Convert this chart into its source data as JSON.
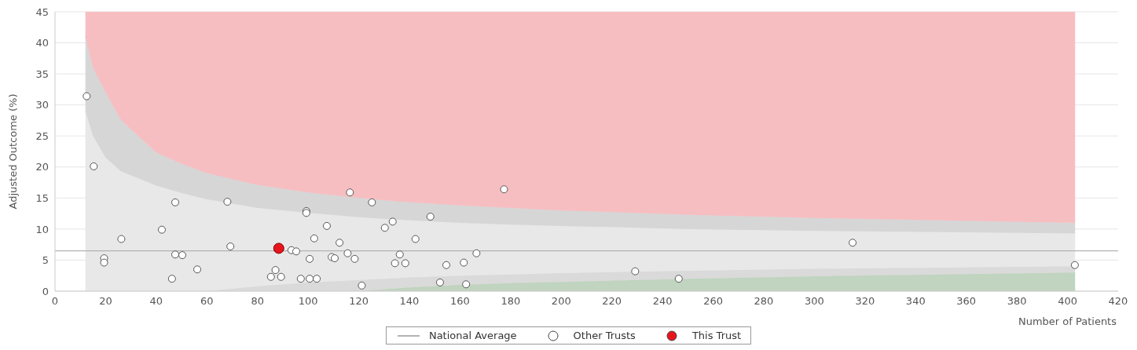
{
  "chart_data": {
    "type": "scatter",
    "xlabel": "Number of Patients",
    "ylabel": "Adjusted Outcome (%)",
    "xlim": [
      0,
      420
    ],
    "xticks": [
      0,
      20,
      40,
      60,
      80,
      100,
      120,
      140,
      160,
      180,
      200,
      220,
      240,
      260,
      280,
      300,
      320,
      340,
      360,
      380,
      400,
      420
    ],
    "ylim": [
      0,
      45
    ],
    "yticks": [
      0,
      5,
      10,
      15,
      20,
      25,
      30,
      35,
      40,
      45
    ],
    "grid": "y",
    "legend": "bottom",
    "stacked": true,
    "series": [
      {
        "type": "area",
        "color": "#c0d4bf",
        "x": [
          12,
          15,
          20,
          26,
          40,
          50,
          60,
          80,
          100,
          120,
          140,
          160,
          180,
          200,
          250,
          300,
          350,
          403
        ],
        "values": [
          0,
          0,
          0,
          0,
          0,
          0,
          0,
          0,
          0,
          0,
          0.6,
          1,
          1.3,
          1.5,
          2,
          2.4,
          2.7,
          3
        ]
      },
      {
        "type": "area",
        "color": "#dadada",
        "x": [
          12,
          15,
          20,
          26,
          40,
          50,
          60,
          80,
          100,
          120,
          140,
          160,
          180,
          200,
          250,
          300,
          350,
          403
        ],
        "values": [
          0,
          0,
          0,
          0,
          0,
          0,
          0,
          0.8,
          1.4,
          1.8,
          1.6,
          1.5,
          1.4,
          1.4,
          1.3,
          1.2,
          1.1,
          1
        ]
      },
      {
        "type": "area",
        "color": "#e8e8e8",
        "x": [
          12,
          15,
          20,
          26,
          40,
          50,
          60,
          80,
          100,
          120,
          140,
          160,
          180,
          200,
          250,
          300,
          350,
          403
        ],
        "values": [
          29,
          25,
          21.5,
          19.3,
          17,
          15.8,
          14.8,
          12.6,
          11.2,
          10.1,
          9.2,
          8.5,
          8,
          7.6,
          6.7,
          6.1,
          5.7,
          5.3
        ]
      },
      {
        "type": "area",
        "color": "#d6d6d6",
        "x": [
          12,
          15,
          20,
          26,
          40,
          50,
          60,
          80,
          100,
          120,
          140,
          160,
          180,
          200,
          250,
          300,
          350,
          403
        ],
        "values": [
          12,
          11,
          10.5,
          8.3,
          5.3,
          4.7,
          4.2,
          3.7,
          3.3,
          3.1,
          2.9,
          2.8,
          2.7,
          2.5,
          2.3,
          2.1,
          1.9,
          1.7
        ]
      },
      {
        "type": "area",
        "color": "#f7bec2",
        "x": [
          12,
          15,
          20,
          26,
          40,
          50,
          60,
          80,
          100,
          120,
          140,
          160,
          180,
          200,
          250,
          300,
          350,
          403
        ],
        "values": [
          4,
          9,
          13,
          17.4,
          22.7,
          24.5,
          26,
          27.9,
          29.1,
          30,
          30.7,
          31.2,
          31.6,
          32,
          32.7,
          33.2,
          33.6,
          34
        ]
      },
      {
        "type": "line",
        "name": "National Average",
        "color": "#b3b3b3",
        "marker": "none",
        "x": [
          0,
          420
        ],
        "values": [
          6.5,
          6.5
        ]
      },
      {
        "name": "Other Trusts",
        "color": "#ffffff",
        "marker": "circle",
        "x": [
          12.5,
          15.3,
          19.4,
          19.4,
          26.2,
          42.2,
          47.5,
          46.2,
          47.5,
          50.3,
          56.2,
          68.1,
          69.3,
          85.3,
          87.1,
          89.3,
          93.4,
          95.3,
          97.1,
          99.3,
          99.3,
          100.6,
          100.6,
          102.4,
          103.4,
          107.4,
          109.3,
          110.5,
          112.4,
          115.6,
          116.5,
          118.4,
          121.2,
          125.2,
          130.3,
          133.4,
          134.3,
          136.2,
          138.4,
          142.4,
          148.3,
          152.1,
          154.6,
          161.5,
          162.4,
          166.5,
          177.4,
          229.2,
          246.4,
          315.1,
          402.9
        ],
        "values": [
          31.4,
          20.1,
          5.3,
          4.6,
          8.4,
          9.9,
          14.3,
          2,
          5.9,
          5.8,
          3.5,
          14.4,
          7.2,
          2.3,
          3.4,
          2.3,
          6.6,
          6.4,
          2,
          12.9,
          12.6,
          5.2,
          2,
          8.5,
          2,
          10.5,
          5.5,
          5.3,
          7.8,
          6.1,
          15.9,
          5.2,
          0.9,
          14.3,
          10.2,
          11.2,
          4.5,
          5.9,
          4.5,
          8.4,
          12,
          1.4,
          4.2,
          4.6,
          1.1,
          6.1,
          16.4,
          3.2,
          2,
          7.8,
          4.2
        ]
      },
      {
        "name": "This Trust",
        "color": "#e8141c",
        "marker": "circle",
        "x": [
          88.4
        ],
        "values": [
          6.9
        ]
      }
    ]
  }
}
